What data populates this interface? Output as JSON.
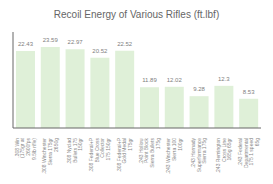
{
  "chart_data": {
    "type": "bar",
    "title": "Recoil Energy of Various Rifles (ft.lbf)",
    "categories": [
      ".308 Win\n(175gr at\n2600fps\n9.5lb rifle)",
      ".308 Winchester\nSierra 175gr\n2650g",
      ".308 Nyclad\nBullets 175\n150gr",
      ".308 Federal+P\nBlue Cross\nCollector\n175 150gr",
      ".308 Federal+P\nGold Medal\n175gr",
      ".243 Hollow\nPoint Block\nSierra Bullets\n175g",
      ".243 Winchester\nSierra 100\n100gr",
      ".243 Hornady\nSuperformance\nSierra 175g",
      ".243 Remington\nCross Line\n165g 65gr",
      ".243 Federal\nDepartmental\n175 1 speed\n65g"
    ],
    "values": [
      22.43,
      23.59,
      22.97,
      20.52,
      22.52,
      11.89,
      12.02,
      9.28,
      12.3,
      8.53
    ],
    "color": "#dff0d8",
    "ylim": [
      0,
      28
    ],
    "grid": false,
    "data_labels": true,
    "tick_labels": "x"
  }
}
